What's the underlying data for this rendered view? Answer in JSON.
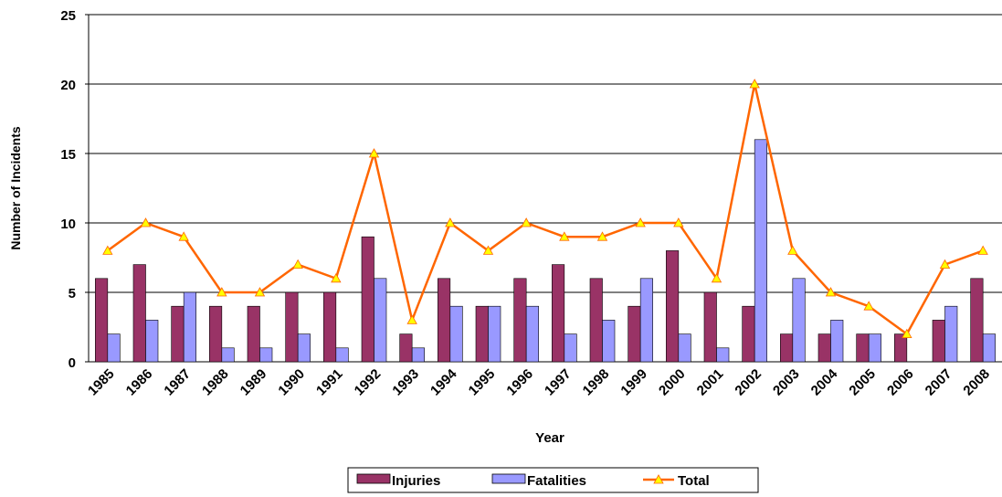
{
  "chart_data": {
    "type": "combo",
    "xlabel": "Year",
    "ylabel": "Number of Incidents",
    "categories": [
      "1985",
      "1986",
      "1987",
      "1988",
      "1989",
      "1990",
      "1991",
      "1992",
      "1993",
      "1994",
      "1995",
      "1996",
      "1997",
      "1998",
      "1999",
      "2000",
      "2001",
      "2002",
      "2003",
      "2004",
      "2005",
      "2006",
      "2007",
      "2008"
    ],
    "series": [
      {
        "name": "Injuries",
        "type": "bar",
        "color": "#993366",
        "values": [
          6,
          7,
          4,
          4,
          4,
          5,
          5,
          9,
          2,
          6,
          4,
          6,
          7,
          6,
          4,
          8,
          5,
          4,
          2,
          2,
          2,
          2,
          3,
          6
        ]
      },
      {
        "name": "Fatalities",
        "type": "bar",
        "color": "#9999ff",
        "values": [
          2,
          3,
          5,
          1,
          1,
          2,
          1,
          6,
          1,
          4,
          4,
          4,
          2,
          3,
          6,
          2,
          1,
          16,
          6,
          3,
          2,
          0,
          4,
          2
        ]
      },
      {
        "name": "Total",
        "type": "line",
        "color": "#ff6600",
        "marker_color": "#ffff00",
        "values": [
          8,
          10,
          9,
          5,
          5,
          7,
          6,
          15,
          3,
          10,
          8,
          10,
          9,
          9,
          10,
          10,
          6,
          20,
          8,
          5,
          4,
          2,
          7,
          8
        ]
      }
    ],
    "ylim": [
      0,
      25
    ],
    "yticks": [
      0,
      5,
      10,
      15,
      20,
      25
    ],
    "grid": true,
    "legend": "bottom"
  }
}
